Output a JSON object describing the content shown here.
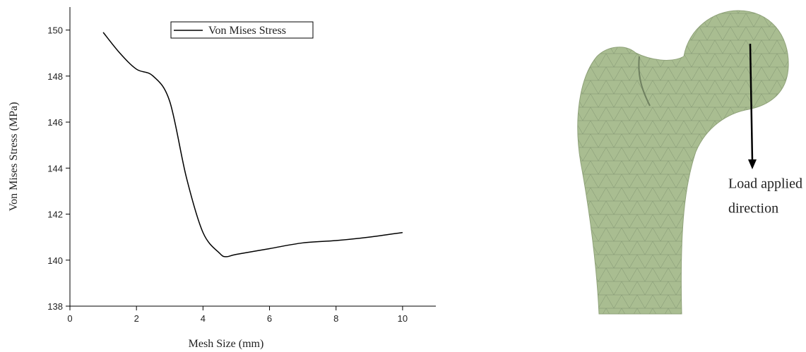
{
  "chart_data": {
    "type": "line",
    "xlabel": "Mesh Size (mm)",
    "ylabel": "Von Mises Stress (MPa)",
    "x": [
      1,
      1.5,
      2,
      2.5,
      3,
      3.5,
      4,
      4.5,
      4.7,
      5,
      6,
      7,
      8,
      9,
      10
    ],
    "series": [
      {
        "name": "Von Mises Stress",
        "color": "#000000",
        "values": [
          149.9,
          149.0,
          148.3,
          148.0,
          146.9,
          143.6,
          141.2,
          140.3,
          140.15,
          140.25,
          140.5,
          140.75,
          140.85,
          141.0,
          141.2
        ]
      }
    ],
    "xlim": [
      0,
      11
    ],
    "ylim": [
      138,
      151
    ],
    "xticks": [
      0,
      2,
      4,
      6,
      8,
      10
    ],
    "yticks": [
      138,
      140,
      142,
      144,
      146,
      148,
      150
    ],
    "legend": "upper center"
  },
  "image_annotation": [
    "Load applied",
    "direction"
  ]
}
